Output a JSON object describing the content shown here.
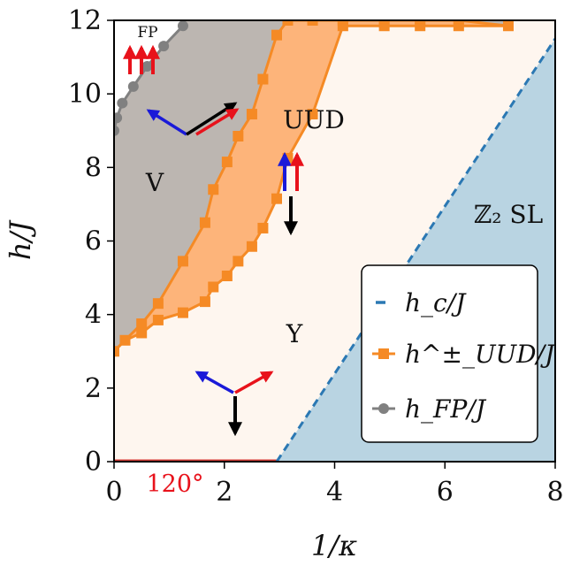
{
  "chart_data": {
    "type": "area",
    "xlabel": "1/κ",
    "ylabel": "h/J",
    "xlim": [
      0,
      8
    ],
    "ylim": [
      0,
      12
    ],
    "xticks": [
      "0",
      "2",
      "4",
      "6",
      "8"
    ],
    "yticks": [
      "0",
      "2",
      "4",
      "6",
      "8",
      "10",
      "12"
    ],
    "region_labels": {
      "fp": "FP",
      "v": "V",
      "uud": "UUD",
      "y": "Y",
      "z2sl": "ℤ₂ SL",
      "deg120": "120°"
    },
    "colors": {
      "v_region": "#bcb6b1",
      "uud_region": "#fdb47a",
      "y_region": "#fef6ef",
      "z2_region": "#b9d4e2",
      "hc_line": "#2b78b3",
      "uud_line": "#f58a25",
      "fp_line": "#808080",
      "deg120_line": "#d03a34",
      "arrow_red": "#e8121b",
      "arrow_blue": "#1a1ad8",
      "arrow_black": "#000000"
    },
    "series": [
      {
        "name": "h_c/J",
        "style": "dashed",
        "x": [
          2.95,
          8.0
        ],
        "y": [
          0.0,
          11.5
        ]
      },
      {
        "name": "h^±_UUD/J",
        "style": "line-square",
        "upper": {
          "x": [
            0.0,
            0.2,
            0.5,
            0.8,
            1.25,
            1.65,
            1.8,
            2.05,
            2.25,
            2.5,
            2.7,
            2.95,
            3.15,
            3.6,
            4.15,
            4.9,
            5.55,
            6.25,
            7.15
          ],
          "y": [
            3.0,
            3.3,
            3.75,
            4.3,
            5.45,
            6.5,
            7.4,
            8.15,
            8.85,
            9.45,
            10.4,
            11.6,
            12.0,
            12.0,
            12.0,
            12.0,
            12.0,
            12.0,
            11.85
          ]
        },
        "lower": {
          "x": [
            0.0,
            0.2,
            0.5,
            0.8,
            1.25,
            1.65,
            1.8,
            2.05,
            2.25,
            2.5,
            2.7,
            2.95,
            3.15,
            3.6,
            4.15,
            4.9,
            5.55,
            6.25,
            7.15
          ],
          "y": [
            3.0,
            3.3,
            3.5,
            3.85,
            4.05,
            4.35,
            4.75,
            5.05,
            5.45,
            5.85,
            6.35,
            7.15,
            8.25,
            9.45,
            11.85,
            11.85,
            11.85,
            11.85,
            11.85
          ]
        }
      },
      {
        "name": "h_FP/J",
        "style": "line-circle",
        "x": [
          0.0,
          0.05,
          0.15,
          0.35,
          0.6,
          0.9,
          1.25
        ],
        "y": [
          9.0,
          9.35,
          9.75,
          10.2,
          10.75,
          11.3,
          11.85
        ]
      }
    ],
    "legend": {
      "placement": "center-right",
      "entries": [
        "h_c/J",
        "h^±_UUD/J",
        "h_FP/J"
      ]
    }
  }
}
